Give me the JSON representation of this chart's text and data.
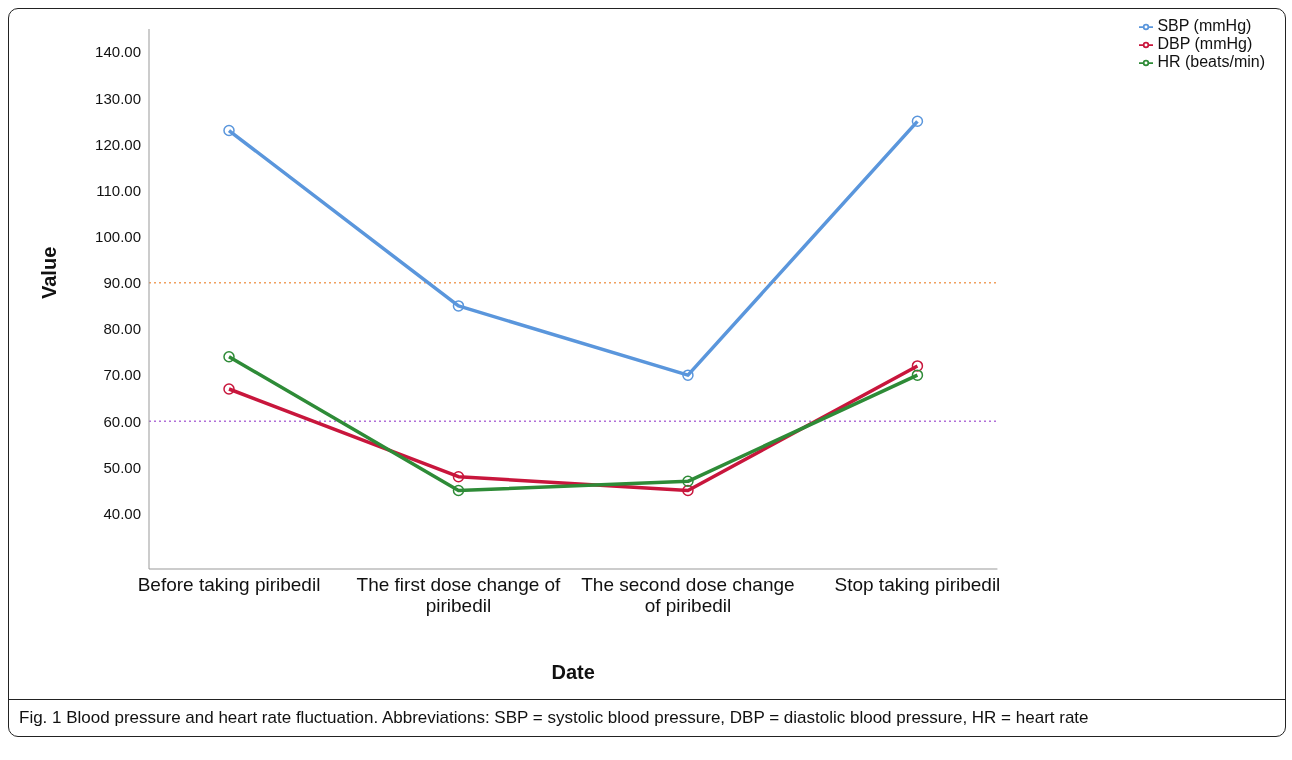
{
  "chart_data": {
    "type": "line",
    "xlabel": "Date",
    "ylabel": "Value",
    "categories": [
      "Before taking piribedil",
      "The first dose change of piribedil",
      "The second dose change of piribedil",
      "Stop taking piribedil"
    ],
    "series": [
      {
        "name": "SBP (mmHg)",
        "color": "#5a96dc",
        "values": [
          123,
          85,
          70,
          125
        ]
      },
      {
        "name": "DBP (mmHg)",
        "color": "#c8163c",
        "values": [
          67,
          48,
          45,
          72
        ]
      },
      {
        "name": "HR (beats/min)",
        "color": "#2e8b37",
        "values": [
          74,
          45,
          47,
          70
        ]
      }
    ],
    "ylim": [
      28,
      145
    ],
    "yticks": [
      {
        "value": 40,
        "label": "40.00"
      },
      {
        "value": 50,
        "label": "50.00"
      },
      {
        "value": 60,
        "label": "60.00"
      },
      {
        "value": 70,
        "label": "70.00"
      },
      {
        "value": 80,
        "label": "80.00"
      },
      {
        "value": 90,
        "label": "90.00"
      },
      {
        "value": 100,
        "label": "100.00"
      },
      {
        "value": 110,
        "label": "110.00"
      },
      {
        "value": 120,
        "label": "120.00"
      },
      {
        "value": 130,
        "label": "130.00"
      },
      {
        "value": 140,
        "label": "140.00"
      }
    ],
    "ref_lines": [
      {
        "axis": "y",
        "value": 90,
        "color": "#f0a060",
        "line_style": "dotted"
      },
      {
        "axis": "y",
        "value": 60,
        "color": "#b070d8",
        "line_style": "dotted"
      }
    ],
    "marker": "circle",
    "line_style": "solid",
    "grid": false,
    "legend": "top right",
    "annotations": [
      "Fig. 1 Blood pressure and heart rate fluctuation. Abbreviations: SBP = systolic blood pressure, DBP = diastolic blood pressure, HR = heart rate"
    ]
  }
}
